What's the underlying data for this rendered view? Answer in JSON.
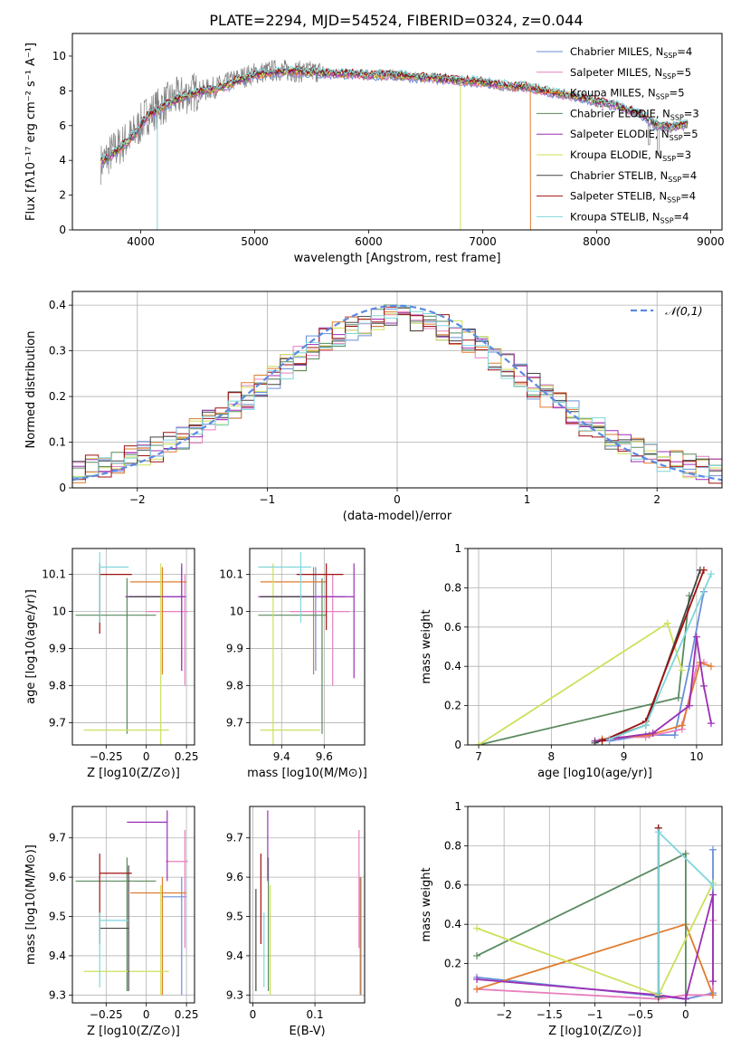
{
  "figure": {
    "title": "PLATE=2294, MJD=54524, FIBERID=0324, z=0.044"
  },
  "series": [
    {
      "name": "Chabrier MILES",
      "nssp": "4",
      "color": "#6a8fd8"
    },
    {
      "name": "Salpeter MILES",
      "nssp": "5",
      "color": "#e87fbf"
    },
    {
      "name": "Kroupa MILES",
      "nssp": "5",
      "color": "#e07b2e"
    },
    {
      "name": "Chabrier ELODIE",
      "nssp": "3",
      "color": "#5a8a5e"
    },
    {
      "name": "Salpeter ELODIE",
      "nssp": "5",
      "color": "#9b2fb5"
    },
    {
      "name": "Kroupa ELODIE",
      "nssp": "3",
      "color": "#cde05a"
    },
    {
      "name": "Chabrier STELIB",
      "nssp": "4",
      "color": "#444444"
    },
    {
      "name": "Salpeter STELIB",
      "nssp": "4",
      "color": "#a01010"
    },
    {
      "name": "Kroupa STELIB",
      "nssp": "4",
      "color": "#7fd6dc"
    }
  ],
  "chart_data": [
    {
      "id": "spectrum",
      "type": "line",
      "xlabel": "wavelength [Angstrom, rest frame]",
      "ylabel": "Flux [fλ10⁻¹⁷ erg cm⁻² s⁻¹ A⁻¹]",
      "xlim": [
        3400,
        9100
      ],
      "ylim": [
        0,
        11.3
      ],
      "xticks": [
        4000,
        5000,
        6000,
        7000,
        8000,
        9000
      ],
      "yticks": [
        0,
        2,
        4,
        6,
        8,
        10
      ],
      "data_color": "#808080",
      "data_flux": {
        "x": [
          3650,
          3750,
          3850,
          3950,
          4050,
          4150,
          4250,
          4350,
          4450,
          4550,
          4650,
          4750,
          4850,
          5000,
          5200,
          5400,
          5600,
          5800,
          6000,
          6200,
          6400,
          6600,
          6800,
          7000,
          7200,
          7400,
          7600,
          7800,
          8000,
          8200,
          8400,
          8500,
          8650,
          8800
        ],
        "y": [
          3.8,
          4.5,
          5.0,
          5.6,
          6.6,
          7.0,
          7.4,
          7.7,
          7.9,
          8.0,
          8.2,
          8.4,
          8.7,
          9.0,
          9.2,
          9.1,
          9.1,
          9.0,
          9.0,
          9.0,
          8.8,
          8.8,
          8.6,
          8.5,
          8.2,
          8.2,
          7.9,
          7.7,
          7.3,
          7.1,
          6.6,
          6.0,
          5.9,
          6.1
        ]
      },
      "model_flux": {
        "x": [
          3650,
          3750,
          3850,
          3950,
          4050,
          4150,
          4250,
          4350,
          4450,
          4550,
          4650,
          4750,
          4850,
          5000,
          5200,
          5400,
          5600,
          5800,
          6000,
          6200,
          6400,
          6600,
          6800,
          7000,
          7200,
          7400,
          7600,
          7800,
          8000,
          8200,
          8400,
          8500,
          8650,
          8800
        ],
        "y": [
          3.9,
          4.3,
          4.9,
          5.5,
          6.5,
          6.9,
          7.3,
          7.6,
          7.8,
          8.0,
          8.1,
          8.3,
          8.6,
          8.9,
          9.1,
          9.1,
          9.0,
          9.0,
          8.9,
          8.9,
          8.8,
          8.7,
          8.6,
          8.5,
          8.3,
          8.2,
          7.9,
          7.7,
          7.4,
          7.1,
          6.6,
          6.1,
          5.9,
          6.1
        ]
      }
    },
    {
      "id": "residuals",
      "type": "step",
      "xlabel": "(data-model)/error",
      "ylabel": "Normed distribution",
      "xlim": [
        -2.5,
        2.5
      ],
      "ylim": [
        0,
        0.43
      ],
      "xticks": [
        -2,
        -1,
        0,
        1,
        2
      ],
      "yticks": [
        0.0,
        0.1,
        0.2,
        0.3,
        0.4
      ],
      "reference_label": "𝒩(0,1)",
      "reference_color": "#5b8ae0"
    },
    {
      "id": "age-vs-Z",
      "type": "errorbar",
      "xlabel": "Z [log10(Z/Z⊙)]",
      "ylabel": "age  [log10(age/yr)]",
      "xlim": [
        -0.46,
        0.3
      ],
      "ylim": [
        9.64,
        10.17
      ],
      "xticks": [
        -0.25,
        0.0,
        0.25
      ],
      "yticks": [
        9.7,
        9.8,
        9.9,
        10.0,
        10.1
      ],
      "points": [
        {
          "x": 0.22,
          "y": 10.04,
          "xerr": [
            0.35,
            0.03
          ],
          "yerr": [
            0.2,
            0.08
          ]
        },
        {
          "x": 0.24,
          "y": 10.0,
          "xerr": [
            0.24,
            0.02
          ],
          "yerr": [
            0.2,
            0.1
          ]
        },
        {
          "x": 0.1,
          "y": 10.08,
          "xerr": [
            0.2,
            0.15
          ],
          "yerr": [
            0.25,
            0.04
          ]
        },
        {
          "x": -0.12,
          "y": 9.99,
          "xerr": [
            0.32,
            0.18
          ],
          "yerr": [
            0.32,
            0.1
          ]
        },
        {
          "x": 0.22,
          "y": 10.04,
          "xerr": [
            0.35,
            0.02
          ],
          "yerr": [
            0.2,
            0.09
          ]
        },
        {
          "x": 0.09,
          "y": 9.68,
          "xerr": [
            0.48,
            0.05
          ],
          "yerr": [
            0.04,
            0.45
          ]
        },
        {
          "x": -0.11,
          "y": 10.04,
          "xerr": [
            0.0,
            0.2
          ],
          "yerr": [
            0.0,
            0.0
          ]
        },
        {
          "x": -0.29,
          "y": 10.1,
          "xerr": [
            0.0,
            0.2
          ],
          "yerr": [
            0.16,
            0.03
          ]
        },
        {
          "x": -0.29,
          "y": 10.12,
          "xerr": [
            0.0,
            0.18
          ],
          "yerr": [
            0.15,
            0.04
          ]
        }
      ]
    },
    {
      "id": "age-vs-mass",
      "type": "errorbar",
      "xlabel": "mass [log10(M/M⊙)]",
      "xlim": [
        9.25,
        9.79
      ],
      "ylim": [
        9.64,
        10.17
      ],
      "xticks": [
        9.4,
        9.6
      ],
      "yticks": [
        9.7,
        9.8,
        9.9,
        10.0,
        10.1
      ],
      "points": [
        {
          "x": 9.56,
          "y": 10.04,
          "xerr": [
            0.26,
            0.14
          ],
          "yerr": [
            0.2,
            0.08
          ]
        },
        {
          "x": 9.64,
          "y": 10.0,
          "xerr": [
            0.2,
            0.08
          ],
          "yerr": [
            0.2,
            0.1
          ]
        },
        {
          "x": 9.55,
          "y": 10.08,
          "xerr": [
            0.25,
            0.06
          ],
          "yerr": [
            0.25,
            0.04
          ]
        },
        {
          "x": 9.59,
          "y": 9.99,
          "xerr": [
            0.3,
            0.02
          ],
          "yerr": [
            0.32,
            0.1
          ]
        },
        {
          "x": 9.74,
          "y": 10.04,
          "xerr": [
            0.45,
            0.0
          ],
          "yerr": [
            0.22,
            0.09
          ]
        },
        {
          "x": 9.36,
          "y": 9.68,
          "xerr": [
            0.06,
            0.22
          ],
          "yerr": [
            0.04,
            0.45
          ]
        },
        {
          "x": 9.47,
          "y": 10.04,
          "xerr": [
            0.17,
            0.08
          ],
          "yerr": [
            0.0,
            0.0
          ]
        },
        {
          "x": 9.61,
          "y": 10.1,
          "xerr": [
            0.14,
            0.08
          ],
          "yerr": [
            0.15,
            0.03
          ]
        },
        {
          "x": 9.49,
          "y": 10.12,
          "xerr": [
            0.2,
            0.05
          ],
          "yerr": [
            0.15,
            0.04
          ]
        }
      ]
    },
    {
      "id": "massweight-vs-age",
      "type": "line",
      "xlabel": "age  [log10(age/yr)]",
      "ylabel": "mass weight",
      "xlim": [
        6.85,
        10.35
      ],
      "ylim": [
        0,
        1.0
      ],
      "xticks": [
        7,
        8,
        9,
        10
      ],
      "yticks": [
        0.0,
        0.2,
        0.4,
        0.6,
        0.8,
        1.0
      ],
      "lines": [
        {
          "x": [
            8.8,
            9.3,
            9.7,
            9.9,
            10.1
          ],
          "y": [
            0.02,
            0.05,
            0.05,
            0.4,
            0.78
          ]
        },
        {
          "x": [
            8.9,
            9.3,
            9.8,
            10.0,
            10.1
          ],
          "y": [
            0.04,
            0.04,
            0.08,
            0.4,
            0.42
          ]
        },
        {
          "x": [
            8.7,
            9.35,
            9.8,
            10.05,
            10.2
          ],
          "y": [
            0.03,
            0.05,
            0.1,
            0.42,
            0.4
          ]
        },
        {
          "x": [
            7.0,
            9.75,
            9.9
          ],
          "y": [
            0.0,
            0.24,
            0.76
          ]
        },
        {
          "x": [
            8.6,
            9.4,
            9.9,
            10.0,
            10.1,
            10.2
          ],
          "y": [
            0.02,
            0.06,
            0.2,
            0.55,
            0.3,
            0.11
          ]
        },
        {
          "x": [
            7.0,
            9.6,
            9.8
          ],
          "y": [
            0.0,
            0.62,
            0.38
          ]
        },
        {
          "x": [
            8.6,
            9.3,
            10.05
          ],
          "y": [
            0.01,
            0.1,
            0.89
          ]
        },
        {
          "x": [
            8.7,
            9.3,
            10.1
          ],
          "y": [
            0.02,
            0.12,
            0.89
          ]
        },
        {
          "x": [
            8.8,
            9.3,
            10.2
          ],
          "y": [
            0.03,
            0.1,
            0.87
          ]
        }
      ]
    },
    {
      "id": "mass-vs-Z",
      "type": "errorbar",
      "xlabel": "Z [log10(Z/Z⊙)]",
      "ylabel": "mass [log10(M/M⊙)]",
      "xlim": [
        -0.46,
        0.3
      ],
      "ylim": [
        9.28,
        9.78
      ],
      "xticks": [
        -0.25,
        0.0,
        0.25
      ],
      "yticks": [
        9.3,
        9.4,
        9.5,
        9.6,
        9.7
      ],
      "points": [
        {
          "x": 0.22,
          "y": 9.55,
          "xerr": [
            0.12,
            0.03
          ],
          "yerr": [
            0.25,
            0.05
          ]
        },
        {
          "x": 0.24,
          "y": 9.64,
          "xerr": [
            0.12,
            0.02
          ],
          "yerr": [
            0.22,
            0.08
          ]
        },
        {
          "x": 0.1,
          "y": 9.56,
          "xerr": [
            0.2,
            0.15
          ],
          "yerr": [
            0.26,
            0.04
          ]
        },
        {
          "x": -0.12,
          "y": 9.59,
          "xerr": [
            0.32,
            0.18
          ],
          "yerr": [
            0.28,
            0.06
          ]
        },
        {
          "x": 0.13,
          "y": 9.74,
          "xerr": [
            0.25,
            0.0
          ],
          "yerr": [
            0.15,
            0.03
          ]
        },
        {
          "x": 0.09,
          "y": 9.36,
          "xerr": [
            0.48,
            0.05
          ],
          "yerr": [
            0.06,
            0.22
          ]
        },
        {
          "x": -0.11,
          "y": 9.47,
          "xerr": [
            0.18,
            0.0
          ],
          "yerr": [
            0.16,
            0.16
          ]
        },
        {
          "x": -0.29,
          "y": 9.61,
          "xerr": [
            0.0,
            0.2
          ],
          "yerr": [
            0.18,
            0.05
          ]
        },
        {
          "x": -0.29,
          "y": 9.49,
          "xerr": [
            0.0,
            0.18
          ],
          "yerr": [
            0.17,
            0.02
          ]
        }
      ]
    },
    {
      "id": "mass-vs-ebv",
      "type": "errorbar",
      "xlabel": "E(B-V)",
      "xlim": [
        -0.005,
        0.18
      ],
      "ylim": [
        9.28,
        9.78
      ],
      "xticks": [
        0.0,
        0.1
      ],
      "yticks": [
        9.3,
        9.4,
        9.5,
        9.6,
        9.7
      ],
      "points": [
        {
          "x": 0.173,
          "y": 9.55,
          "xerr": [
            0.0,
            0.0
          ],
          "yerr": [
            0.25,
            0.05
          ]
        },
        {
          "x": 0.171,
          "y": 9.64,
          "xerr": [
            0.0,
            0.0
          ],
          "yerr": [
            0.22,
            0.08
          ]
        },
        {
          "x": 0.174,
          "y": 9.56,
          "xerr": [
            0.0,
            0.0
          ],
          "yerr": [
            0.26,
            0.04
          ]
        },
        {
          "x": 0.025,
          "y": 9.59,
          "xerr": [
            0.0,
            0.0
          ],
          "yerr": [
            0.28,
            0.06
          ]
        },
        {
          "x": 0.024,
          "y": 9.74,
          "xerr": [
            0.0,
            0.0
          ],
          "yerr": [
            0.15,
            0.03
          ]
        },
        {
          "x": 0.028,
          "y": 9.36,
          "xerr": [
            0.0,
            0.0
          ],
          "yerr": [
            0.06,
            0.22
          ]
        },
        {
          "x": 0.005,
          "y": 9.47,
          "xerr": [
            0.0,
            0.0
          ],
          "yerr": [
            0.16,
            0.1
          ]
        },
        {
          "x": 0.013,
          "y": 9.61,
          "xerr": [
            0.0,
            0.0
          ],
          "yerr": [
            0.18,
            0.05
          ]
        },
        {
          "x": 0.018,
          "y": 9.49,
          "xerr": [
            0.0,
            0.0
          ],
          "yerr": [
            0.17,
            0.02
          ]
        }
      ]
    },
    {
      "id": "massweight-vs-Z",
      "type": "line",
      "xlabel": "Z [log10(Z/Z⊙)]",
      "ylabel": "mass weight",
      "xlim": [
        -2.4,
        0.4
      ],
      "ylim": [
        0,
        1.0
      ],
      "xticks": [
        -2.0,
        -1.5,
        -1.0,
        -0.5,
        0.0
      ],
      "yticks": [
        0.0,
        0.2,
        0.4,
        0.6,
        0.8,
        1.0
      ],
      "lines": [
        {
          "x": [
            -2.3,
            0.0,
            0.3,
            0.3
          ],
          "y": [
            0.13,
            0.02,
            0.05,
            0.78
          ]
        },
        {
          "x": [
            -2.3,
            -0.3,
            0.0,
            0.3,
            0.3
          ],
          "y": [
            0.07,
            0.02,
            0.04,
            0.04,
            0.42
          ]
        },
        {
          "x": [
            -2.3,
            0.0,
            0.3
          ],
          "y": [
            0.07,
            0.4,
            0.04
          ]
        },
        {
          "x": [
            -2.3,
            0.0,
            0.0
          ],
          "y": [
            0.24,
            0.76,
            0.0
          ]
        },
        {
          "x": [
            -2.3,
            -0.3,
            0.0,
            0.3,
            0.3
          ],
          "y": [
            0.12,
            0.04,
            0.02,
            0.55,
            0.11
          ]
        },
        {
          "x": [
            -2.3,
            -0.3,
            0.3
          ],
          "y": [
            0.38,
            0.04,
            0.61
          ]
        },
        {
          "x": [
            -0.3,
            -0.3
          ],
          "y": [
            0.03,
            0.89
          ]
        },
        {
          "x": [
            -0.3,
            -0.3
          ],
          "y": [
            0.05,
            0.89
          ]
        },
        {
          "x": [
            -0.3,
            -0.3,
            0.3
          ],
          "y": [
            0.05,
            0.87,
            0.6
          ]
        }
      ]
    }
  ]
}
